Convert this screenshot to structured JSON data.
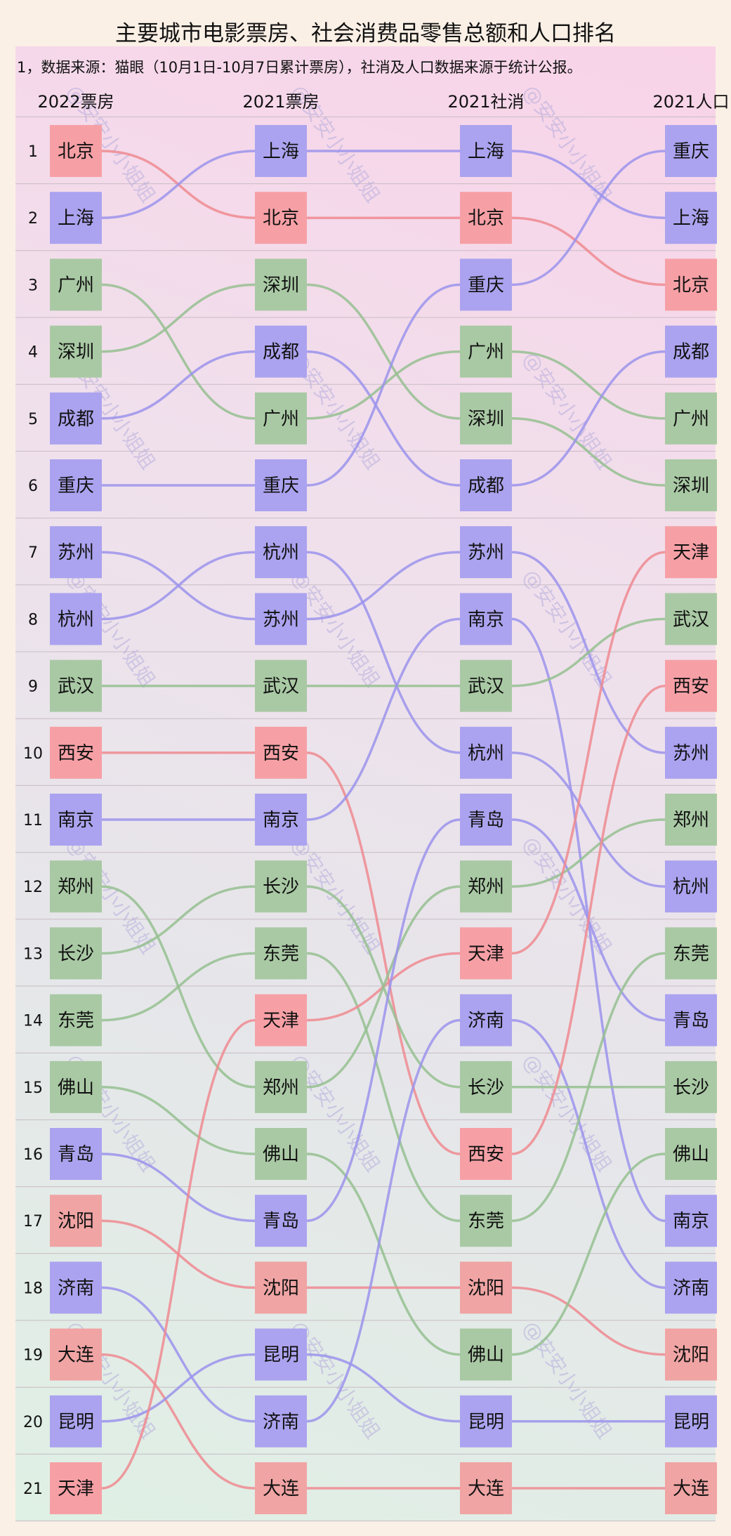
{
  "chart_data": {
    "type": "bump",
    "title": "主要城市电影票房、社会消费品零售总额和人口排名",
    "note": "1，数据来源：猫眼（10月1日-10月7日累计票房），社消及人口数据来源于统计公报。",
    "watermark": "@安安小小姐姐",
    "ranks": [
      "1",
      "2",
      "3",
      "4",
      "5",
      "6",
      "7",
      "8",
      "9",
      "10",
      "11",
      "12",
      "13",
      "14",
      "15",
      "16",
      "17",
      "18",
      "19",
      "20",
      "21"
    ],
    "columns": [
      {
        "name": "2022票房",
        "cities": [
          "北京",
          "上海",
          "广州",
          "深圳",
          "成都",
          "重庆",
          "苏州",
          "杭州",
          "武汉",
          "西安",
          "南京",
          "郑州",
          "长沙",
          "东莞",
          "佛山",
          "青岛",
          "沈阳",
          "济南",
          "大连",
          "昆明",
          "天津"
        ]
      },
      {
        "name": "2021票房",
        "cities": [
          "上海",
          "北京",
          "深圳",
          "成都",
          "广州",
          "重庆",
          "杭州",
          "苏州",
          "武汉",
          "西安",
          "南京",
          "长沙",
          "东莞",
          "天津",
          "郑州",
          "佛山",
          "青岛",
          "沈阳",
          "昆明",
          "济南",
          "大连"
        ]
      },
      {
        "name": "2021社消",
        "cities": [
          "上海",
          "北京",
          "重庆",
          "广州",
          "深圳",
          "成都",
          "苏州",
          "南京",
          "武汉",
          "杭州",
          "青岛",
          "郑州",
          "天津",
          "济南",
          "长沙",
          "西安",
          "东莞",
          "沈阳",
          "佛山",
          "昆明",
          "大连"
        ]
      },
      {
        "name": "2021人口",
        "cities": [
          "重庆",
          "上海",
          "北京",
          "成都",
          "广州",
          "深圳",
          "天津",
          "武汉",
          "西安",
          "苏州",
          "郑州",
          "杭州",
          "东莞",
          "青岛",
          "长沙",
          "佛山",
          "南京",
          "济南",
          "沈阳",
          "昆明",
          "大连"
        ]
      }
    ],
    "city_colors": {
      "北京": "#f6a0a6",
      "上海": "#aba3ef",
      "广州": "#a9c9a4",
      "深圳": "#a9c9a4",
      "成都": "#aba3ef",
      "重庆": "#aba3ef",
      "苏州": "#aba3ef",
      "杭州": "#aba3ef",
      "武汉": "#a9c9a4",
      "西安": "#f6a0a6",
      "南京": "#aba3ef",
      "郑州": "#a9c9a4",
      "长沙": "#a9c9a4",
      "东莞": "#a9c9a4",
      "佛山": "#a9c9a4",
      "青岛": "#aba3ef",
      "沈阳": "#f0a4a4",
      "济南": "#aba3ef",
      "大连": "#f0a4a4",
      "昆明": "#aba3ef",
      "天津": "#f6a0a6"
    },
    "line_colors": {
      "#f6a0a6": "#ef8a90",
      "#f0a4a4": "#ef8a90",
      "#aba3ef": "#9b93ec",
      "#a9c9a4": "#95bf90"
    }
  }
}
